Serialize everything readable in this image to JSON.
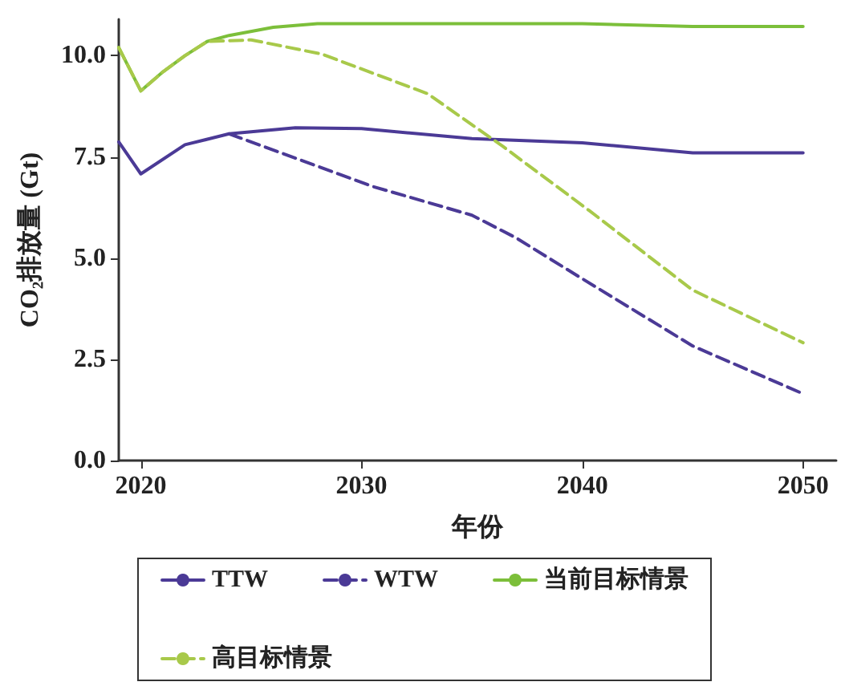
{
  "chart_data": {
    "type": "line",
    "xlabel": "年份",
    "ylabel": "CO₂排放量 (Gt)",
    "xlim": [
      2019,
      2051.5
    ],
    "xticks": [
      2020,
      2030,
      2040,
      2050
    ],
    "ylim": [
      0,
      10.9
    ],
    "yticks": [
      {
        "value": 0,
        "label": "0.0"
      },
      {
        "value": 2.5,
        "label": "2.5"
      },
      {
        "value": 5,
        "label": "5.0"
      },
      {
        "value": 7.5,
        "label": "7.5"
      },
      {
        "value": 10,
        "label": "10.0"
      }
    ],
    "grid": false,
    "legend": "bottom",
    "marker": "none",
    "series": [
      {
        "name": "TTW",
        "color": "#4b3a96",
        "line_style": "solid",
        "x": [
          2019,
          2020,
          2022,
          2024,
          2027,
          2030,
          2035,
          2040,
          2045,
          2050
        ],
        "values": [
          7.87,
          7.08,
          7.8,
          8.07,
          8.22,
          8.2,
          7.95,
          7.85,
          7.6,
          7.6
        ]
      },
      {
        "name": "WTW",
        "color": "#4b3a96",
        "line_style": "dashed",
        "x": [
          2024,
          2030.5,
          2035,
          2037,
          2040,
          2045,
          2050
        ],
        "values": [
          8.07,
          6.77,
          6.06,
          5.5,
          4.49,
          2.83,
          1.65
        ]
      },
      {
        "name": "当前目标情景",
        "color": "#7cbf3a",
        "line_style": "solid",
        "x": [
          2019,
          2020,
          2021,
          2022,
          2023,
          2024,
          2026,
          2028,
          2035,
          2040,
          2045,
          2050
        ],
        "values": [
          10.2,
          9.13,
          9.6,
          10.0,
          10.35,
          10.5,
          10.7,
          10.79,
          10.79,
          10.79,
          10.72,
          10.72
        ]
      },
      {
        "name": "高目标情景",
        "color": "#a8c94a",
        "line_style": "dashed",
        "x": [
          2019,
          2020,
          2021,
          2022,
          2023,
          2025,
          2028.2,
          2033,
          2036.4,
          2040.3,
          2045,
          2050
        ],
        "values": [
          10.2,
          9.13,
          9.6,
          10.0,
          10.35,
          10.39,
          10.04,
          9.06,
          7.76,
          6.18,
          4.21,
          2.91
        ]
      }
    ]
  }
}
